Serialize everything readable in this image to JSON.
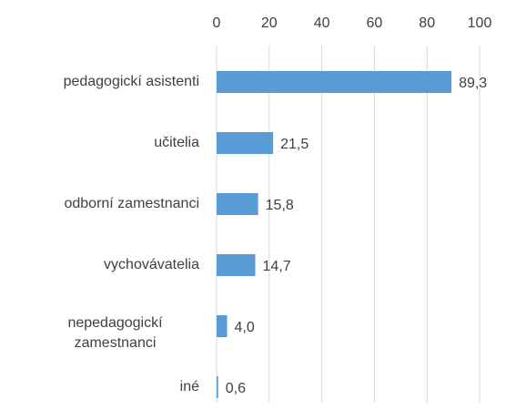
{
  "chart_data": {
    "type": "hbar",
    "categories": [
      "pedagogickí asistenti",
      "učitelia",
      "odborní zamestnanci",
      "vychovávatelia",
      "nepedagogickí zamestnanci",
      "iné"
    ],
    "values": [
      89.3,
      21.5,
      15.8,
      14.7,
      4.0,
      0.6
    ],
    "value_labels": [
      "89,3",
      "21,5",
      "15,8",
      "14,7",
      "4,0",
      "0,6"
    ],
    "color": "#5b9bd5",
    "xlim": [
      0,
      100
    ],
    "xticks": [
      0,
      20,
      40,
      60,
      80,
      100
    ],
    "grid": true
  }
}
